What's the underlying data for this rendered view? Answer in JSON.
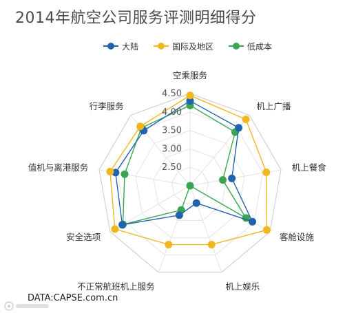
{
  "chart_data": {
    "type": "radar",
    "title": "2014年航空公司服务评测明细得分",
    "categories": [
      "空乘服务",
      "机上广播",
      "机上餐食",
      "客舱设施",
      "机上娱乐",
      "不正常航班机上服务",
      "安全选项",
      "值机与离港服务",
      "行李服务"
    ],
    "rlim": [
      2.0,
      4.5
    ],
    "rticks": [
      2.5,
      3.0,
      3.5,
      4.0,
      4.5
    ],
    "rtick_labels": [
      "2.50",
      "3.00",
      "3.50",
      "4.00",
      "4.50"
    ],
    "legend_position": "top",
    "grid": true,
    "series": [
      {
        "name": "大陆",
        "color": "#1f63ad",
        "values": [
          4.3,
          4.05,
          3.15,
          3.95,
          2.5,
          2.85,
          4.12,
          4.05,
          3.95
        ]
      },
      {
        "name": "国际及地区",
        "color": "#f0b81e",
        "values": [
          4.45,
          4.35,
          4.1,
          4.4,
          3.7,
          3.7,
          4.35,
          4.2,
          4.1
        ]
      },
      {
        "name": "低成本",
        "color": "#3aa551",
        "values": [
          4.18,
          3.9,
          2.9,
          3.75,
          2.0,
          2.7,
          4.1,
          3.8,
          4.05
        ]
      }
    ]
  },
  "source": "DATA:CAPSE.com.cn"
}
